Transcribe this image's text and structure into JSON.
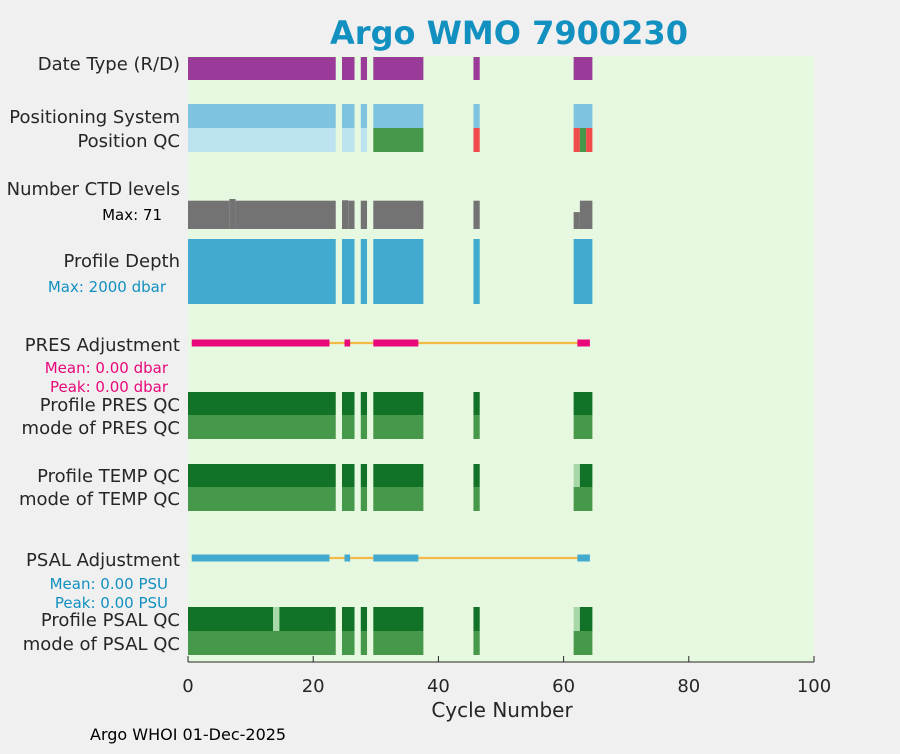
{
  "chart_data": {
    "type": "bar",
    "title": "Argo WMO 7900230",
    "xlabel": "Cycle Number",
    "xlim": [
      0,
      100
    ],
    "xticks": [
      "0",
      "20",
      "40",
      "60",
      "80",
      "100"
    ],
    "grid": false,
    "rows": [
      {
        "key": "date_type",
        "label": "Date Type (R/D)"
      },
      {
        "key": "positioning_system",
        "label": "Positioning System"
      },
      {
        "key": "position_qc",
        "label": "Position QC"
      },
      {
        "key": "number_ctd_levels",
        "label": "Number CTD levels",
        "note": "Max: 71"
      },
      {
        "key": "profile_depth",
        "label": "Profile Depth",
        "note": "Max: 2000 dbar"
      },
      {
        "key": "pres_adjustment",
        "label": "PRES Adjustment",
        "mean": "Mean: 0.00 dbar",
        "peak": "Peak: 0.00 dbar"
      },
      {
        "key": "profile_pres_qc",
        "label": "Profile PRES QC"
      },
      {
        "key": "mode_pres_qc",
        "label": "mode of PRES QC"
      },
      {
        "key": "profile_temp_qc",
        "label": "Profile TEMP QC"
      },
      {
        "key": "mode_temp_qc",
        "label": "mode of TEMP QC"
      },
      {
        "key": "psal_adjustment",
        "label": "PSAL Adjustment",
        "mean": "Mean: 0.00 PSU",
        "peak": "Peak: 0.00 PSU"
      },
      {
        "key": "profile_psal_qc",
        "label": "Profile PSAL QC"
      },
      {
        "key": "mode_psal_qc",
        "label": "mode of PSAL QC"
      }
    ],
    "cycle_ranges": [
      [
        1,
        23
      ],
      [
        25,
        26
      ],
      [
        28,
        28
      ],
      [
        30,
        37
      ],
      [
        46,
        46
      ],
      [
        62,
        64
      ]
    ],
    "series": [
      {
        "name": "date_type",
        "segments": [
          {
            "start": 0,
            "end": 23.6,
            "status": "D"
          },
          {
            "start": 24.6,
            "end": 26.6,
            "status": "D"
          },
          {
            "start": 27.6,
            "end": 28.6,
            "status": "D"
          },
          {
            "start": 29.6,
            "end": 37.6,
            "status": "D"
          },
          {
            "start": 45.6,
            "end": 46.6,
            "status": "D"
          },
          {
            "start": 61.6,
            "end": 64.6,
            "status": "D"
          }
        ]
      },
      {
        "name": "positioning_system",
        "segments": [
          {
            "start": 0,
            "end": 23.6,
            "status": "ARGOS"
          },
          {
            "start": 24.6,
            "end": 26.6,
            "status": "ARGOS"
          },
          {
            "start": 27.6,
            "end": 28.6,
            "status": "ARGOS"
          },
          {
            "start": 29.6,
            "end": 37.6,
            "status": "ARGOS"
          },
          {
            "start": 45.6,
            "end": 46.6,
            "status": "ARGOS"
          },
          {
            "start": 61.6,
            "end": 64.6,
            "status": "ARGOS"
          }
        ]
      },
      {
        "name": "position_qc",
        "segments": [
          {
            "start": 0,
            "end": 23.6,
            "status": "0"
          },
          {
            "start": 24.6,
            "end": 26.6,
            "status": "0"
          },
          {
            "start": 27.6,
            "end": 28.6,
            "status": "0"
          },
          {
            "start": 29.6,
            "end": 37.6,
            "status": "1"
          },
          {
            "start": 45.6,
            "end": 46.6,
            "status": "4"
          },
          {
            "start": 61.6,
            "end": 62.6,
            "status": "4"
          },
          {
            "start": 62.6,
            "end": 63.6,
            "status": "1"
          },
          {
            "start": 63.6,
            "end": 64.6,
            "status": "4"
          }
        ]
      },
      {
        "name": "number_ctd_levels",
        "segments": [
          {
            "start": 0,
            "end": 6.6,
            "value": 67
          },
          {
            "start": 6.6,
            "end": 7.6,
            "value": 71
          },
          {
            "start": 7.6,
            "end": 23.6,
            "value": 67
          },
          {
            "start": 24.6,
            "end": 25.6,
            "value": 68
          },
          {
            "start": 25.6,
            "end": 26.6,
            "value": 67
          },
          {
            "start": 27.6,
            "end": 28.6,
            "value": 67
          },
          {
            "start": 29.6,
            "end": 37.6,
            "value": 67
          },
          {
            "start": 45.6,
            "end": 46.6,
            "value": 67
          },
          {
            "start": 61.6,
            "end": 62.6,
            "value": 40
          },
          {
            "start": 62.6,
            "end": 64.6,
            "value": 67
          }
        ]
      },
      {
        "name": "profile_depth",
        "segments": [
          {
            "start": 0,
            "end": 23.6,
            "value": 2000
          },
          {
            "start": 24.6,
            "end": 26.6,
            "value": 2000
          },
          {
            "start": 27.6,
            "end": 28.6,
            "value": 2000
          },
          {
            "start": 29.6,
            "end": 37.6,
            "value": 2000
          },
          {
            "start": 45.6,
            "end": 46.6,
            "value": 2000
          },
          {
            "start": 61.6,
            "end": 64.6,
            "value": 2000
          }
        ]
      },
      {
        "name": "pres_adjustment",
        "line_range": [
          0.6,
          64
        ],
        "segments": [
          {
            "start": 0.6,
            "end": 22.6,
            "value": 0
          },
          {
            "start": 25,
            "end": 25.9,
            "value": 0
          },
          {
            "start": 29.6,
            "end": 36.8,
            "value": 0
          },
          {
            "start": 62.2,
            "end": 64.2,
            "value": 0
          }
        ]
      },
      {
        "name": "profile_pres_qc",
        "segments": [
          {
            "start": 0,
            "end": 23.6,
            "status": "A"
          },
          {
            "start": 24.6,
            "end": 26.6,
            "status": "A"
          },
          {
            "start": 27.6,
            "end": 28.6,
            "status": "A"
          },
          {
            "start": 29.6,
            "end": 37.6,
            "status": "A"
          },
          {
            "start": 45.6,
            "end": 46.6,
            "status": "A"
          },
          {
            "start": 61.6,
            "end": 64.6,
            "status": "A"
          }
        ]
      },
      {
        "name": "mode_pres_qc",
        "segments": [
          {
            "start": 0,
            "end": 23.6,
            "status": "1"
          },
          {
            "start": 24.6,
            "end": 26.6,
            "status": "1"
          },
          {
            "start": 27.6,
            "end": 28.6,
            "status": "1"
          },
          {
            "start": 29.6,
            "end": 37.6,
            "status": "1"
          },
          {
            "start": 45.6,
            "end": 46.6,
            "status": "1"
          },
          {
            "start": 61.6,
            "end": 64.6,
            "status": "1"
          }
        ]
      },
      {
        "name": "profile_temp_qc",
        "segments": [
          {
            "start": 0,
            "end": 23.6,
            "status": "A"
          },
          {
            "start": 24.6,
            "end": 26.6,
            "status": "A"
          },
          {
            "start": 27.6,
            "end": 28.6,
            "status": "A"
          },
          {
            "start": 29.6,
            "end": 37.6,
            "status": "A"
          },
          {
            "start": 45.6,
            "end": 46.6,
            "status": "A"
          },
          {
            "start": 61.6,
            "end": 62.6,
            "status": "B"
          },
          {
            "start": 62.6,
            "end": 64.6,
            "status": "A"
          }
        ]
      },
      {
        "name": "mode_temp_qc",
        "segments": [
          {
            "start": 0,
            "end": 23.6,
            "status": "1"
          },
          {
            "start": 24.6,
            "end": 26.6,
            "status": "1"
          },
          {
            "start": 27.6,
            "end": 28.6,
            "status": "1"
          },
          {
            "start": 29.6,
            "end": 37.6,
            "status": "1"
          },
          {
            "start": 45.6,
            "end": 46.6,
            "status": "1"
          },
          {
            "start": 61.6,
            "end": 64.6,
            "status": "1"
          }
        ]
      },
      {
        "name": "psal_adjustment",
        "line_range": [
          0.6,
          64
        ],
        "segments": [
          {
            "start": 0.6,
            "end": 22.6,
            "value": 0
          },
          {
            "start": 25,
            "end": 25.9,
            "value": 0
          },
          {
            "start": 29.6,
            "end": 36.8,
            "value": 0
          },
          {
            "start": 62.2,
            "end": 64.2,
            "value": 0
          }
        ]
      },
      {
        "name": "profile_psal_qc",
        "segments": [
          {
            "start": 0,
            "end": 13.6,
            "status": "A"
          },
          {
            "start": 13.6,
            "end": 14.6,
            "status": "B"
          },
          {
            "start": 14.6,
            "end": 23.6,
            "status": "A"
          },
          {
            "start": 24.6,
            "end": 26.6,
            "status": "A"
          },
          {
            "start": 27.6,
            "end": 28.6,
            "status": "A"
          },
          {
            "start": 29.6,
            "end": 37.6,
            "status": "A"
          },
          {
            "start": 45.6,
            "end": 46.6,
            "status": "A"
          },
          {
            "start": 61.6,
            "end": 62.6,
            "status": "B"
          },
          {
            "start": 62.6,
            "end": 64.6,
            "status": "A"
          }
        ]
      },
      {
        "name": "mode_psal_qc",
        "segments": [
          {
            "start": 0,
            "end": 23.6,
            "status": "1"
          },
          {
            "start": 24.6,
            "end": 26.6,
            "status": "1"
          },
          {
            "start": 27.6,
            "end": 28.6,
            "status": "1"
          },
          {
            "start": 29.6,
            "end": 37.6,
            "status": "1"
          },
          {
            "start": 45.6,
            "end": 46.6,
            "status": "1"
          },
          {
            "start": 61.6,
            "end": 64.6,
            "status": "1"
          }
        ]
      }
    ],
    "colors": {
      "title": "#1290c0",
      "plot_background": "#e6f9e0",
      "figure_background": "#f0f0f0",
      "date_type": "#9a3b9a",
      "positioning_system": "#7ec4e0",
      "position_qc_0": "#bde3f0",
      "qc_good": "#46994a",
      "qc_bad": "#f04a4a",
      "ctd_levels": "#737373",
      "profile_depth": "#42aacf",
      "pres_adjustment": "#e8087a",
      "psal_adjustment": "#42aacf",
      "adjustment_line": "#f5b948",
      "profile_qc_A": "#127228",
      "profile_qc_B": "#a8d8a8",
      "pres_note": "#e8087a",
      "depth_note": "#1290c0",
      "psal_note": "#1290c0"
    }
  },
  "footer": {
    "note": "Argo WHOI 01-Dec-2025"
  }
}
